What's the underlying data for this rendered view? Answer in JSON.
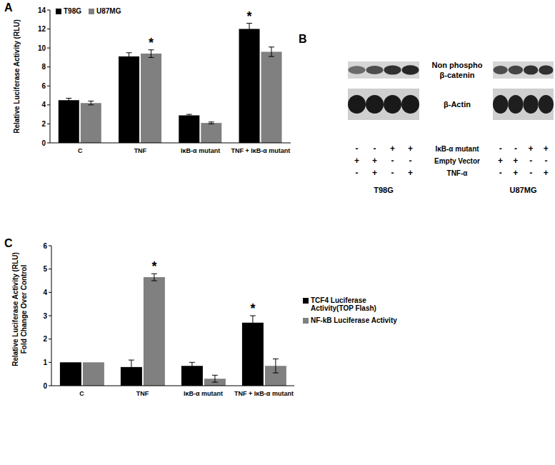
{
  "chart_data": [
    {
      "type": "bar",
      "title": "A",
      "ylabel": "Relative Luciferase Activity (RLU)",
      "categories": [
        "C",
        "TNF",
        "IκB-α mutant",
        "TNF + IκB-α mutant"
      ],
      "series": [
        {
          "name": "T98G",
          "color": "#000000",
          "values": [
            4.5,
            9.1,
            2.9,
            12.0
          ],
          "errors": [
            0.2,
            0.4,
            0.1,
            0.6
          ]
        },
        {
          "name": "U87MG",
          "color": "#808080",
          "values": [
            4.2,
            9.4,
            2.1,
            9.6
          ],
          "errors": [
            0.2,
            0.4,
            0.1,
            0.5
          ]
        }
      ],
      "ylim": [
        0,
        14
      ],
      "yticks": [
        0,
        2,
        4,
        6,
        8,
        10,
        12,
        14
      ],
      "grid": false,
      "legend": "upper left",
      "annotations": [
        {
          "text": "*",
          "category": "TNF",
          "series": "U87MG"
        },
        {
          "text": "*",
          "category": "TNF + IκB-α mutant",
          "series": "T98G"
        }
      ]
    },
    {
      "type": "bar",
      "title": "C",
      "ylabel": "Relative Luciferase Activity (RLU)\nFold Change Over Control",
      "categories": [
        "C",
        "TNF",
        "IκB-α mutant",
        "TNF + IκB-α mutant"
      ],
      "series": [
        {
          "name": "TCF4 Luciferase Activity(TOP Flash)",
          "color": "#000000",
          "values": [
            1,
            0.8,
            0.85,
            2.7
          ],
          "errors": [
            0,
            0.3,
            0.15,
            0.3
          ]
        },
        {
          "name": "NF-kB Luciferase Activity",
          "color": "#808080",
          "values": [
            1,
            4.65,
            0.3,
            0.85
          ],
          "errors": [
            0,
            0.15,
            0.15,
            0.3
          ]
        }
      ],
      "ylim": [
        0,
        6
      ],
      "yticks": [
        0,
        1,
        2,
        3,
        4,
        5,
        6
      ],
      "grid": false,
      "legend": "right",
      "annotations": [
        {
          "text": "*",
          "category": "TNF",
          "series": "NF-kB Luciferase Activity"
        },
        {
          "text": "*",
          "category": "TNF + IκB-α mutant",
          "series": "TCF4 Luciferase Activity(TOP Flash)"
        }
      ]
    }
  ],
  "blot": {
    "title": "B",
    "cell_lines": [
      "T98G",
      "U87MG"
    ],
    "bands": [
      [
        "Non phospho",
        "β-catenin"
      ],
      [
        "β-Actin"
      ]
    ],
    "conditions": [
      {
        "label": "IκB-α mutant",
        "signs": [
          "-",
          "-",
          "+",
          "+"
        ]
      },
      {
        "label": "Empty Vector",
        "signs": [
          "+",
          "+",
          "-",
          "-"
        ]
      },
      {
        "label": "TNF-α",
        "signs": [
          "-",
          "+",
          "-",
          "+"
        ]
      }
    ]
  }
}
